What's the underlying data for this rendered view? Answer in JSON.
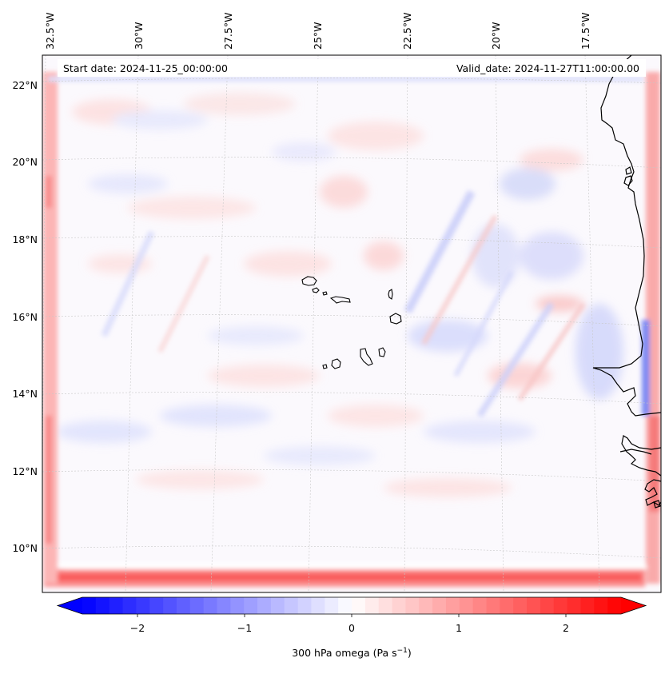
{
  "map": {
    "start_label": "Start date: 2024-11-25_00:00:00",
    "valid_label": "Valid_date: 2024-11-27T11:00:00.00",
    "lon_labels": [
      "32.5°W",
      "30°W",
      "27.5°W",
      "25°W",
      "22.5°W",
      "20°W",
      "17.5°W"
    ],
    "lat_labels": [
      "22°N",
      "20°N",
      "18°N",
      "16°N",
      "14°N",
      "12°N",
      "10°N"
    ]
  },
  "colorbar": {
    "ticks": [
      "−2",
      "−1",
      "0",
      "1",
      "2"
    ],
    "label": "300 hPa omega (Pa s",
    "label_sup": "−1",
    "label_close": ")"
  },
  "colors": {
    "min": "#0000ff",
    "mid": "#ffffff",
    "max": "#ff0000",
    "coast": "#000000"
  }
}
